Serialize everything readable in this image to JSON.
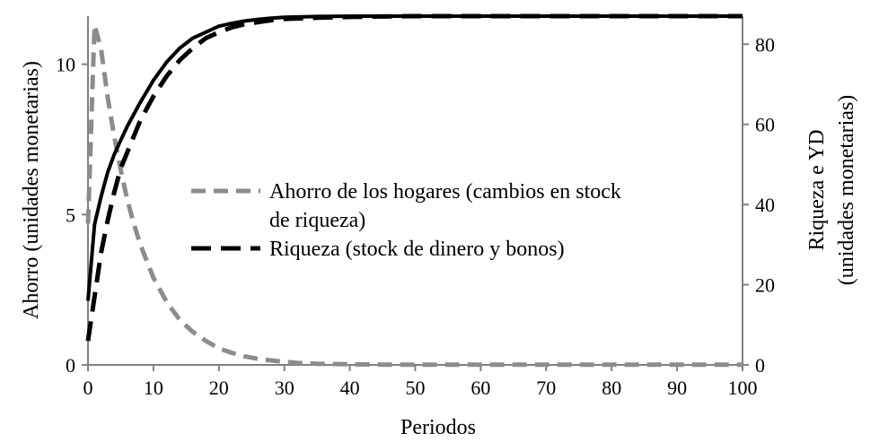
{
  "chart_data": {
    "type": "line",
    "title": "",
    "xlabel": "Periodos",
    "ylabel_left": "Ahorro (unidades monetarias)",
    "ylabel_right": [
      "Riqueza e YD",
      "(unidades monetarias)"
    ],
    "xlim": [
      0,
      100
    ],
    "ylim_left": [
      0,
      11.6
    ],
    "ylim_right": [
      0,
      87
    ],
    "x_ticks": [
      0,
      10,
      20,
      30,
      40,
      50,
      60,
      70,
      80,
      90,
      100
    ],
    "y_left_ticks": [
      0,
      5,
      10
    ],
    "y_right_ticks": [
      0,
      20,
      40,
      60,
      80
    ],
    "grid": false,
    "legend_position": "center",
    "colors": {
      "ahorro": "#8c8c8c",
      "riqueza": "#000000",
      "yd": "#000000"
    },
    "series": [
      {
        "name": "Ahorro de los hogares (cambios en stock de riqueza)",
        "legend_lines": [
          "Ahorro de los hogares (cambios en stock",
          "de riqueza)"
        ],
        "axis": "left",
        "style": "dashed-gray",
        "x": [
          0,
          1,
          2,
          3,
          4,
          5,
          6,
          7,
          8,
          10,
          12,
          14,
          16,
          18,
          20,
          22,
          24,
          26,
          28,
          30,
          32,
          35,
          40,
          45,
          50,
          60,
          70,
          80,
          90,
          100
        ],
        "y": [
          4.7,
          11.3,
          10.5,
          8.9,
          7.6,
          6.5,
          5.5,
          4.7,
          4.0,
          2.9,
          2.1,
          1.5,
          1.1,
          0.8,
          0.55,
          0.4,
          0.28,
          0.2,
          0.15,
          0.1,
          0.07,
          0.04,
          0.02,
          0.01,
          0.01,
          0.01,
          0.01,
          0.01,
          0.01,
          0.01
        ]
      },
      {
        "name": "Riqueza (stock de dinero y bonos)",
        "legend_lines": [
          "Riqueza (stock de dinero y bonos)"
        ],
        "axis": "right",
        "style": "dashed-black",
        "x": [
          0,
          1,
          2,
          3,
          4,
          5,
          6,
          7,
          8,
          10,
          12,
          14,
          16,
          18,
          20,
          22,
          24,
          26,
          28,
          30,
          35,
          40,
          45,
          50,
          60,
          70,
          80,
          90,
          100
        ],
        "y": [
          6,
          17,
          28,
          36,
          43,
          49,
          53,
          57,
          61,
          67,
          72,
          76,
          79,
          81.5,
          83,
          84.2,
          85,
          85.5,
          86,
          86.3,
          86.6,
          86.8,
          86.9,
          87,
          87,
          87,
          87,
          87,
          87
        ]
      },
      {
        "name": "YD",
        "legend_lines": [],
        "axis": "right",
        "style": "solid-black",
        "x": [
          0,
          1,
          2,
          3,
          4,
          5,
          6,
          7,
          8,
          10,
          12,
          14,
          16,
          18,
          20,
          22,
          24,
          26,
          28,
          30,
          35,
          40,
          45,
          50,
          60,
          70,
          80,
          90,
          100
        ],
        "y": [
          16,
          35,
          42,
          48,
          52.5,
          56,
          59.5,
          62.5,
          65.5,
          71,
          75.5,
          79,
          81.5,
          83,
          84.5,
          85.2,
          85.8,
          86.2,
          86.5,
          86.7,
          86.9,
          87,
          87,
          87,
          87,
          87,
          87,
          87,
          87
        ]
      }
    ]
  }
}
